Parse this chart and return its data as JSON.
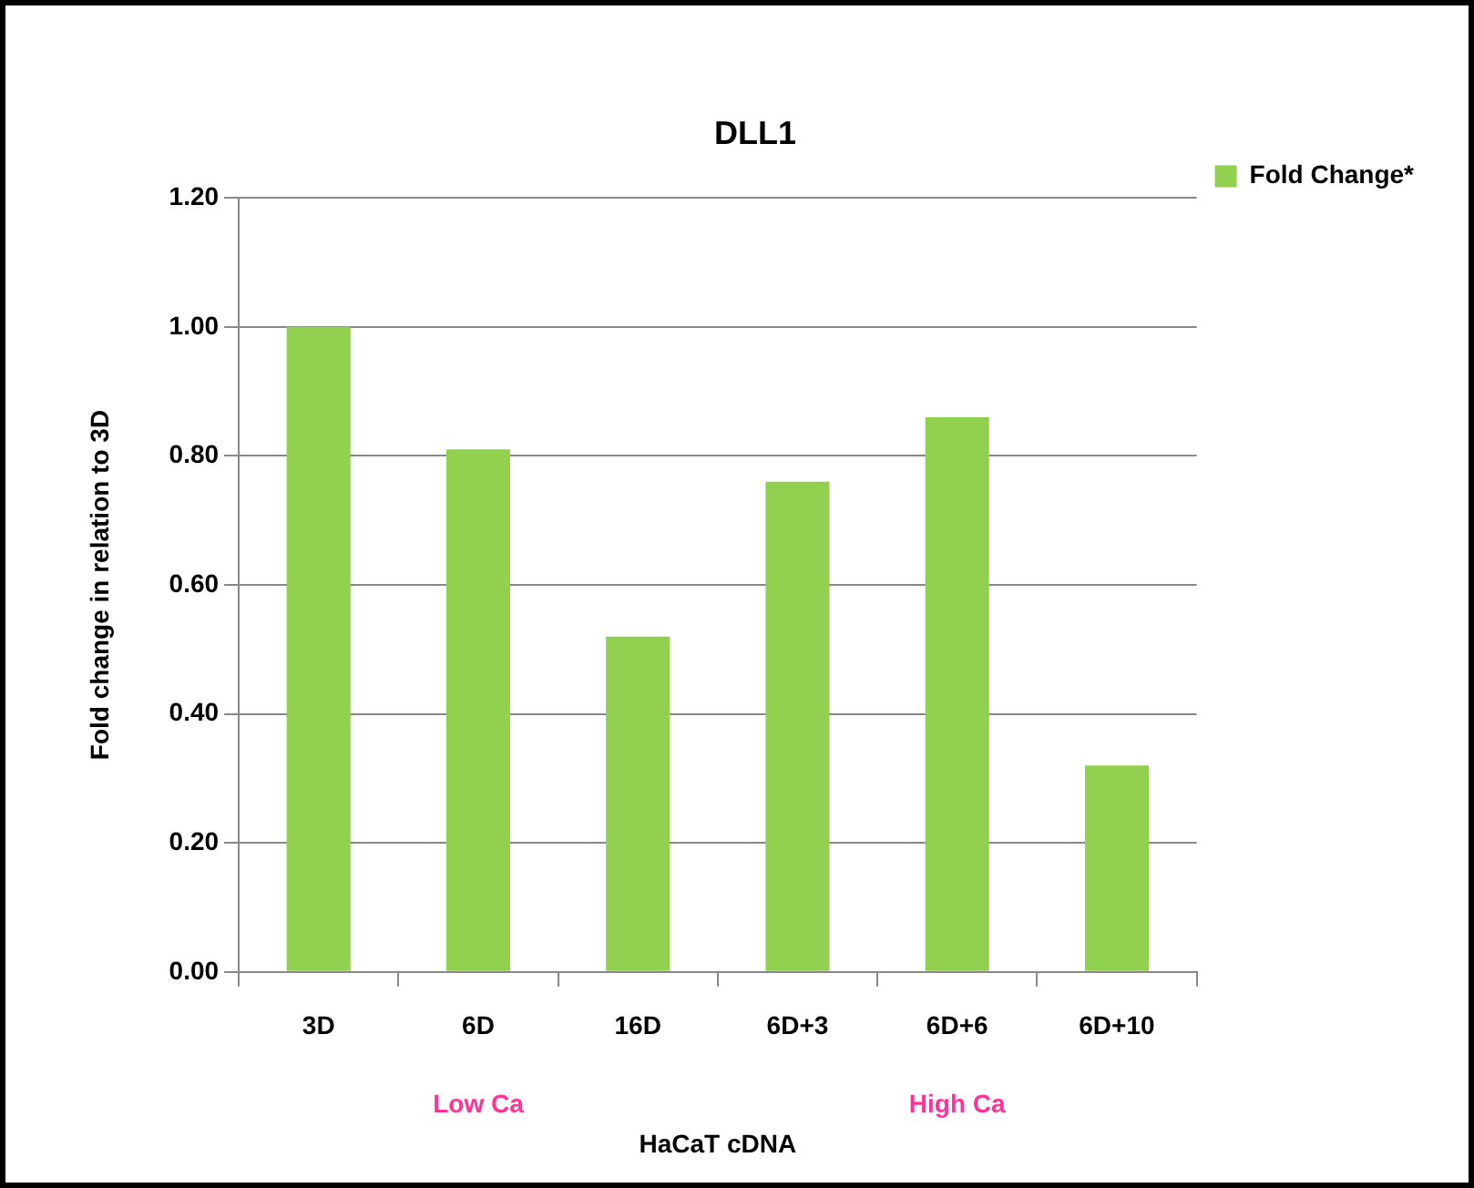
{
  "chart_data": {
    "type": "bar",
    "title": "DLL1",
    "xlabel": "HaCaT cDNA",
    "ylabel": "Fold change in relation to 3D",
    "categories": [
      "3D",
      "6D",
      "16D",
      "6D+3",
      "6D+6",
      "6D+10"
    ],
    "series": [
      {
        "name": "Fold Change*",
        "color": "#92d050",
        "values": [
          1.0,
          0.81,
          0.52,
          0.76,
          0.86,
          0.32
        ]
      }
    ],
    "ylim": [
      0,
      1.2
    ],
    "yticks": [
      {
        "value": 0,
        "label": "0.00"
      },
      {
        "value": 0.2,
        "label": "0.20"
      },
      {
        "value": 0.4,
        "label": "0.40"
      },
      {
        "value": 0.6,
        "label": "0.60"
      },
      {
        "value": 0.8,
        "label": "0.80"
      },
      {
        "value": 1.0,
        "label": "1.00"
      },
      {
        "value": 1.2,
        "label": "1.20"
      }
    ],
    "grid": "y",
    "legend": "right",
    "annotations": [
      "Low Ca",
      "High Ca"
    ]
  }
}
